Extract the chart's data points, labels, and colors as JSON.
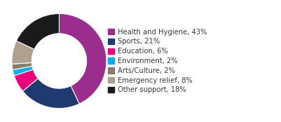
{
  "labels": [
    "Health and Hygiene, 43%",
    "Sports, 21%",
    "Education, 6%",
    "Environment, 2%",
    "Arts/Culture, 2%",
    "Emergency relief, 8%",
    "Other support, 18%"
  ],
  "values": [
    43,
    21,
    6,
    2,
    2,
    8,
    18
  ],
  "colors": [
    "#9B2D8E",
    "#1F3A6E",
    "#E8007D",
    "#00AEEF",
    "#8B7B6B",
    "#B0A090",
    "#1A1A1A"
  ],
  "background_color": "#FFFFFF",
  "wedge_edge_color": "#FFFFFF",
  "donut_width": 0.42,
  "legend_fontsize": 7.2,
  "figsize": [
    4.02,
    1.74
  ],
  "dpi": 100
}
